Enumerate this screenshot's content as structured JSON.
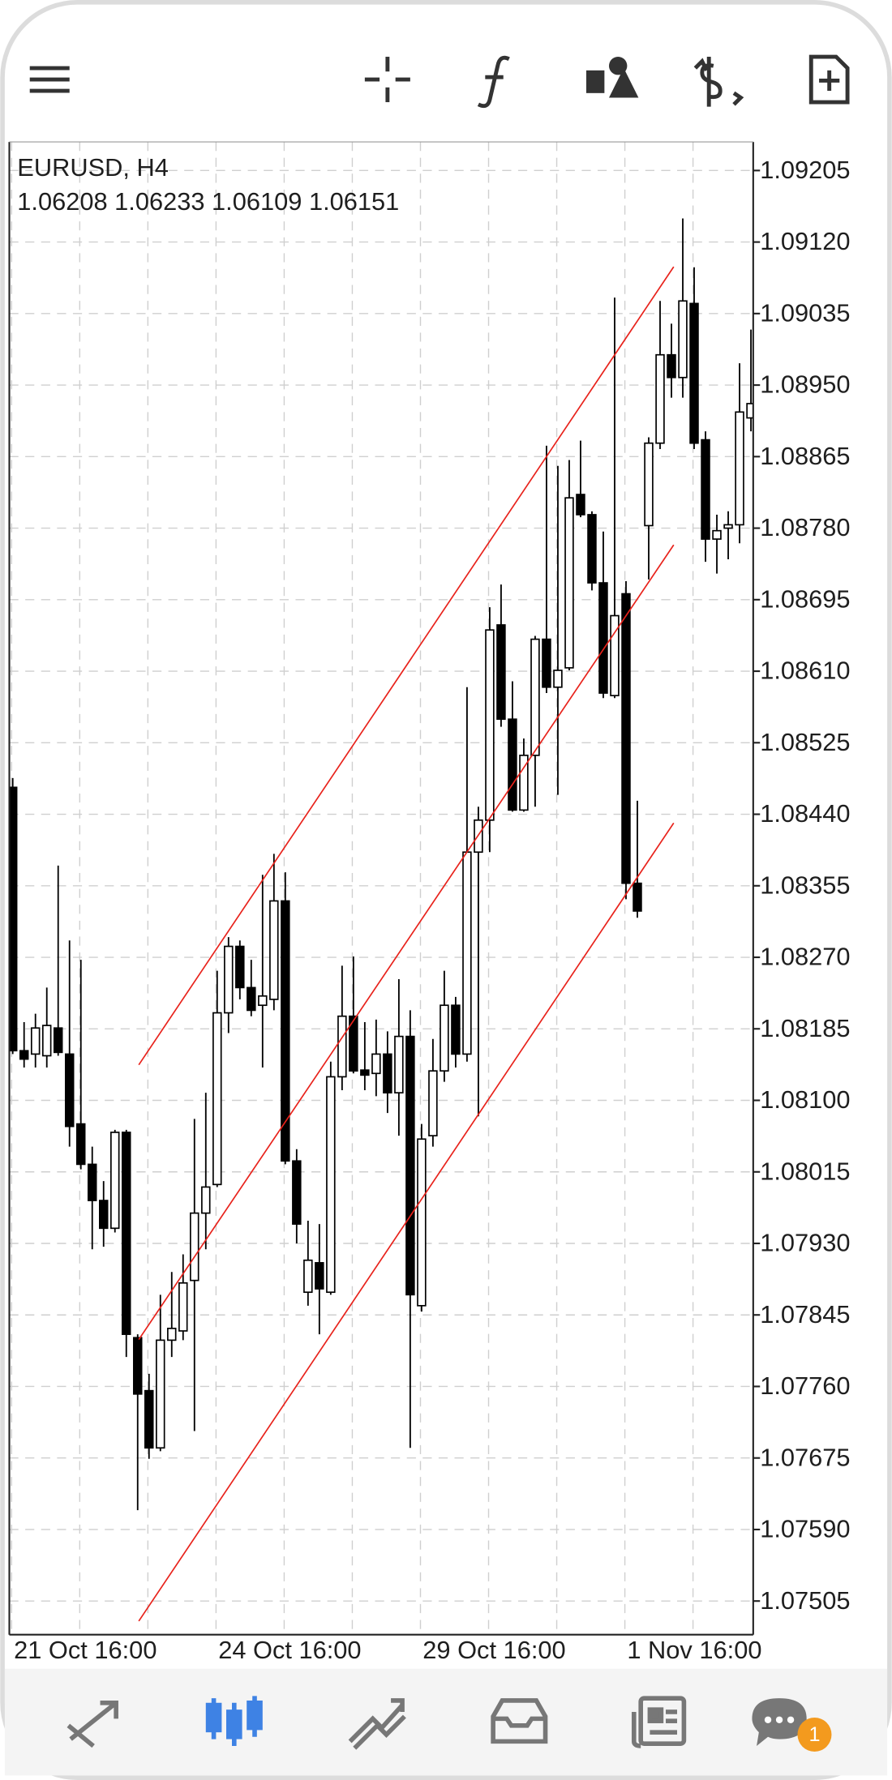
{
  "chart_data": {
    "type": "candlestick",
    "title": "EURUSD, H4",
    "subtitle": "1.06208 1.06233 1.06109 1.06151",
    "categories": [
      "21 Oct 16:00",
      null,
      null,
      null,
      null,
      null,
      null,
      null,
      null,
      null,
      null,
      null,
      null,
      null,
      null,
      null,
      null,
      null,
      "24 Oct 16:00",
      null,
      null,
      null,
      null,
      null,
      null,
      null,
      null,
      null,
      null,
      null,
      null,
      null,
      null,
      null,
      null,
      null,
      "29 Oct 16:00",
      null,
      null,
      null,
      null,
      null,
      null,
      null,
      null,
      null,
      null,
      null,
      null,
      null,
      null,
      null,
      null,
      null,
      "1 Nov 16:00",
      null,
      null,
      null,
      null,
      null,
      null,
      null,
      null,
      null,
      null,
      null
    ],
    "open": [
      1.08472,
      1.08159,
      1.08155,
      1.08153,
      1.08186,
      1.08155,
      1.08072,
      1.08024,
      1.07981,
      1.07948,
      1.08062,
      1.07818,
      1.07755,
      1.07687,
      1.07815,
      1.07826,
      1.07886,
      1.07966,
      1.08,
      1.08204,
      1.08283,
      1.08234,
      1.08213,
      1.0822,
      1.08337,
      1.08028,
      1.07872,
      1.07907,
      1.07872,
      1.08128,
      1.082,
      1.08136,
      1.08132,
      1.08155,
      1.08109,
      1.08176,
      1.07856,
      1.08058,
      1.08135,
      1.08213,
      1.08155,
      1.08395,
      1.08433,
      1.08665,
      1.08553,
      1.08445,
      1.0851,
      1.08648,
      1.08591,
      1.08614,
      1.0882,
      1.08796,
      1.08715,
      1.08581,
      1.08702,
      1.08358,
      1.08783,
      1.08881,
      1.08986,
      1.08959,
      1.09047,
      1.08885,
      1.08767,
      1.0878,
      1.08784,
      1.08911
    ],
    "high": [
      1.08483,
      1.08193,
      1.08203,
      1.08234,
      1.08379,
      1.0829,
      1.08267,
      1.08045,
      1.08004,
      1.08065,
      1.08065,
      1.07822,
      1.07775,
      1.07869,
      1.07896,
      1.07917,
      1.08078,
      1.08109,
      1.08254,
      1.08294,
      1.0829,
      1.08267,
      1.08368,
      1.08393,
      1.08371,
      1.08042,
      1.07957,
      1.07953,
      1.08146,
      1.0826,
      1.08271,
      1.08193,
      1.08196,
      1.08182,
      1.08244,
      1.08207,
      1.08072,
      1.08173,
      1.08254,
      1.08223,
      1.08591,
      1.08449,
      1.08686,
      1.08713,
      1.08598,
      1.0853,
      1.08652,
      1.08878,
      1.08854,
      1.08861,
      1.08884,
      1.088,
      1.08776,
      1.09054,
      1.08717,
      1.08456,
      1.08888,
      1.0905,
      1.09023,
      1.09148,
      1.0909,
      1.08895,
      1.08796,
      1.088,
      1.08976,
      1.09016
    ],
    "low": [
      1.08155,
      1.08139,
      1.08139,
      1.08139,
      1.08153,
      1.08045,
      1.08018,
      1.07923,
      1.07926,
      1.07943,
      1.07795,
      1.07613,
      1.07674,
      1.07683,
      1.07795,
      1.07815,
      1.07707,
      1.07923,
      1.07997,
      1.0818,
      1.0822,
      1.082,
      1.08139,
      1.08207,
      1.08024,
      1.0793,
      1.07856,
      1.07822,
      1.07869,
      1.08112,
      1.08132,
      1.08112,
      1.08105,
      1.08085,
      1.08058,
      1.07687,
      1.07849,
      1.08045,
      1.08122,
      1.08139,
      1.08146,
      1.08081,
      1.08395,
      1.08544,
      1.08443,
      1.08443,
      1.08449,
      1.08584,
      1.08463,
      1.08611,
      1.08793,
      1.08706,
      1.08578,
      1.08578,
      1.08339,
      1.08317,
      1.08719,
      1.08874,
      1.08935,
      1.08935,
      1.08874,
      1.0874,
      1.08726,
      1.08743,
      1.08762,
      1.08895
    ],
    "close": [
      1.08159,
      1.08149,
      1.08186,
      1.08189,
      1.08157,
      1.08069,
      1.08024,
      1.07981,
      1.07948,
      1.08062,
      1.07822,
      1.07751,
      1.07687,
      1.07815,
      1.07829,
      1.07883,
      1.07966,
      1.07997,
      1.08204,
      1.08283,
      1.08234,
      1.08207,
      1.08224,
      1.08337,
      1.08028,
      1.07953,
      1.0791,
      1.07876,
      1.08128,
      1.082,
      1.08135,
      1.0813,
      1.08155,
      1.08109,
      1.08176,
      1.07869,
      1.08054,
      1.08135,
      1.08213,
      1.08155,
      1.08395,
      1.08433,
      1.08659,
      1.08553,
      1.08445,
      1.0851,
      1.08648,
      1.08591,
      1.08611,
      1.08816,
      1.08796,
      1.08715,
      1.08584,
      1.08676,
      1.08358,
      1.08325,
      1.08881,
      1.08986,
      1.08959,
      1.0905,
      1.08881,
      1.08767,
      1.08777,
      1.08784,
      1.08918,
      1.08928
    ],
    "ylim": [
      1.07465,
      1.09239
    ],
    "yticks": [
      1.09205,
      {
        "value": 1.0912,
        "label": "1.09120"
      },
      1.09035,
      {
        "value": 1.0895,
        "label": "1.08950"
      },
      1.08865,
      {
        "value": 1.0878,
        "label": "1.08780"
      },
      1.08695,
      {
        "value": 1.0861,
        "label": "1.08610"
      },
      1.08525,
      {
        "value": 1.0844,
        "label": "1.08440"
      },
      1.08355,
      {
        "value": 1.0827,
        "label": "1.08270"
      },
      1.08185,
      {
        "value": 1.081,
        "label": "1.08100"
      },
      1.08015,
      {
        "value": 1.0793,
        "label": "1.07930"
      },
      1.07845,
      {
        "value": 1.0776,
        "label": "1.07760"
      },
      1.07675,
      {
        "value": 1.0759,
        "label": "1.07590"
      },
      1.07505
    ],
    "grid": true,
    "up_color": "#ffffff",
    "down_color": "#000000",
    "outline_color": "#000000",
    "channel_color": "#e8221b"
  },
  "tab_bar": {
    "badge": 1
  }
}
